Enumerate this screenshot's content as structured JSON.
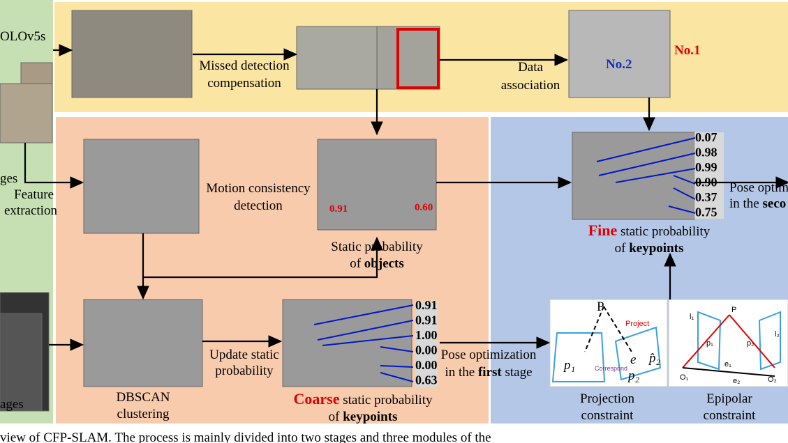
{
  "left_panel": {
    "top_label": "OLOv5s",
    "images_label_top": "ges",
    "feature_extraction": [
      "Feature",
      "extraction"
    ],
    "images_label_bottom": "ages"
  },
  "top_panel": {
    "missed_detection": [
      "Missed detection",
      "compensation"
    ],
    "data_association": [
      "Data",
      "association"
    ],
    "track_ids": [
      "No.2",
      "No.1"
    ]
  },
  "coarse_stage": {
    "motion_consistency": [
      "Motion consistency",
      "detection"
    ],
    "object_probabilities": [
      "0.91",
      "0.60"
    ],
    "object_caption": {
      "line1": "Static probability",
      "line2": "of",
      "bold": "objects"
    },
    "update": [
      "Update static",
      "probability"
    ],
    "dbscan": [
      "DBSCAN",
      "clustering"
    ],
    "keypoint_probabilities": [
      "0.91",
      "0.91",
      "1.00",
      "0.00",
      "0.00",
      "0.63"
    ],
    "keypoint_caption": {
      "emphasis": "Coarse",
      "line1": "static probability",
      "line2": "of",
      "bold": "keypoints"
    },
    "pose": {
      "line1": "Pose optimization",
      "line2": "in the",
      "bold": "first",
      "after": "stage"
    }
  },
  "fine_stage": {
    "keypoint_probabilities": [
      "0.07",
      "0.98",
      "0.99",
      "0.90",
      "0.37",
      "0.75"
    ],
    "keypoint_caption": {
      "emphasis": "Fine",
      "line1": "static probability",
      "line2": "of",
      "bold": "keypoints"
    },
    "pose": {
      "line1": "Pose optim",
      "line2": "in the",
      "bold": "seco"
    },
    "projection": {
      "caption": [
        "Projection",
        "constraint"
      ],
      "labels": {
        "point": "P",
        "project": "Project",
        "p1": "p₁",
        "correspond": "Correspond",
        "e": "e",
        "p2_hat": "p̂₂",
        "p2": "p₂"
      }
    },
    "epipolar": {
      "caption": [
        "Epipolar",
        "constraint"
      ],
      "labels": {
        "point": "P",
        "p1": "p₁",
        "p2": "p₂",
        "l1": "l₁",
        "l2": "l₂",
        "e1": "e₁",
        "e2": "e₂",
        "o1": "O₁",
        "o2": "O₂"
      }
    }
  },
  "caption": "view of CFP-SLAM. The process is mainly divided into two stages and three modules of the"
}
